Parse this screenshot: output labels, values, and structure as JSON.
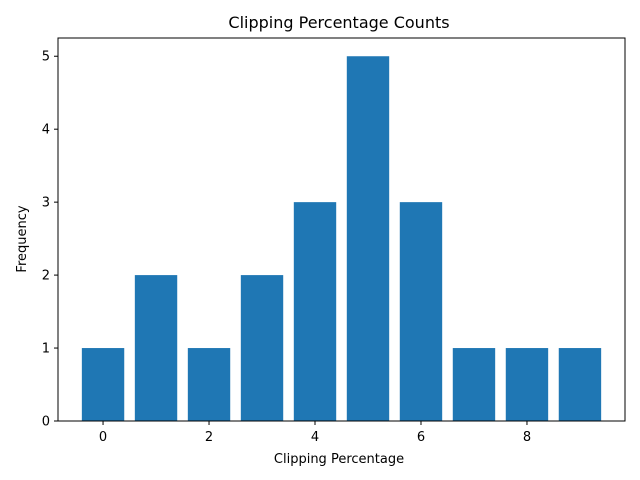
{
  "chart_data": {
    "type": "bar",
    "title": "Clipping Percentage Counts",
    "xlabel": "Clipping Percentage",
    "ylabel": "Frequency",
    "x": [
      0,
      1,
      2,
      3,
      4,
      5,
      6,
      7,
      8,
      9
    ],
    "values": [
      1,
      2,
      1,
      2,
      3,
      5,
      3,
      1,
      1,
      1
    ],
    "xlim": [
      -0.85,
      9.85
    ],
    "ylim": [
      0,
      5.25
    ],
    "xticks": [
      "0",
      "2",
      "4",
      "6",
      "8"
    ],
    "yticks": [
      "0",
      "1",
      "2",
      "3",
      "4",
      "5"
    ],
    "bar_color": "#1f77b4",
    "grid": false,
    "legend": "none"
  }
}
